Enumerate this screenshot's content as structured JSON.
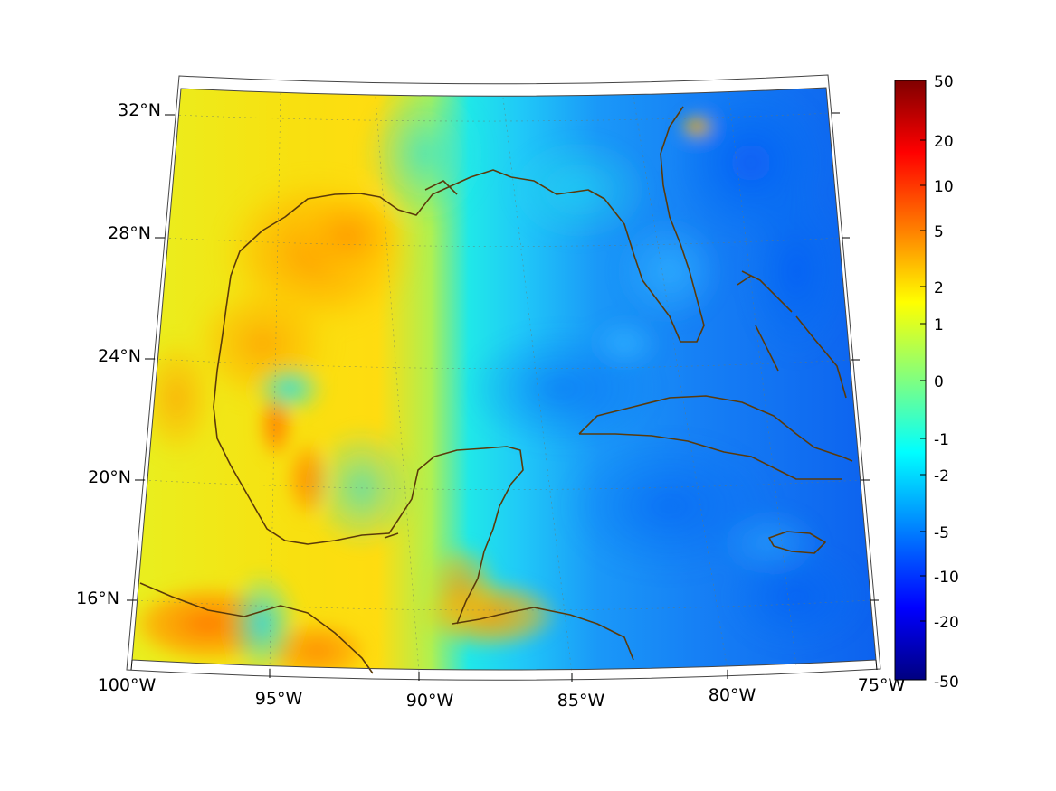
{
  "map": {
    "projection": "conic (lambert-style)",
    "extent": {
      "lon_min": -100,
      "lon_max": -75,
      "lat_min": 14,
      "lat_max": 33
    },
    "grid": true,
    "coastline_color": "#5a3a0a"
  },
  "lat_labels": [
    "32°N",
    "28°N",
    "24°N",
    "20°N",
    "16°N"
  ],
  "lon_labels": [
    "100°W",
    "95°W",
    "90°W",
    "85°W",
    "80°W",
    "75°W"
  ],
  "colorbar": {
    "colormap": "jet",
    "labels": [
      "50",
      "20",
      "10",
      "5",
      "2",
      "1",
      "0",
      "-1",
      "-2",
      "-5",
      "-10",
      "-20",
      "-50"
    ]
  }
}
